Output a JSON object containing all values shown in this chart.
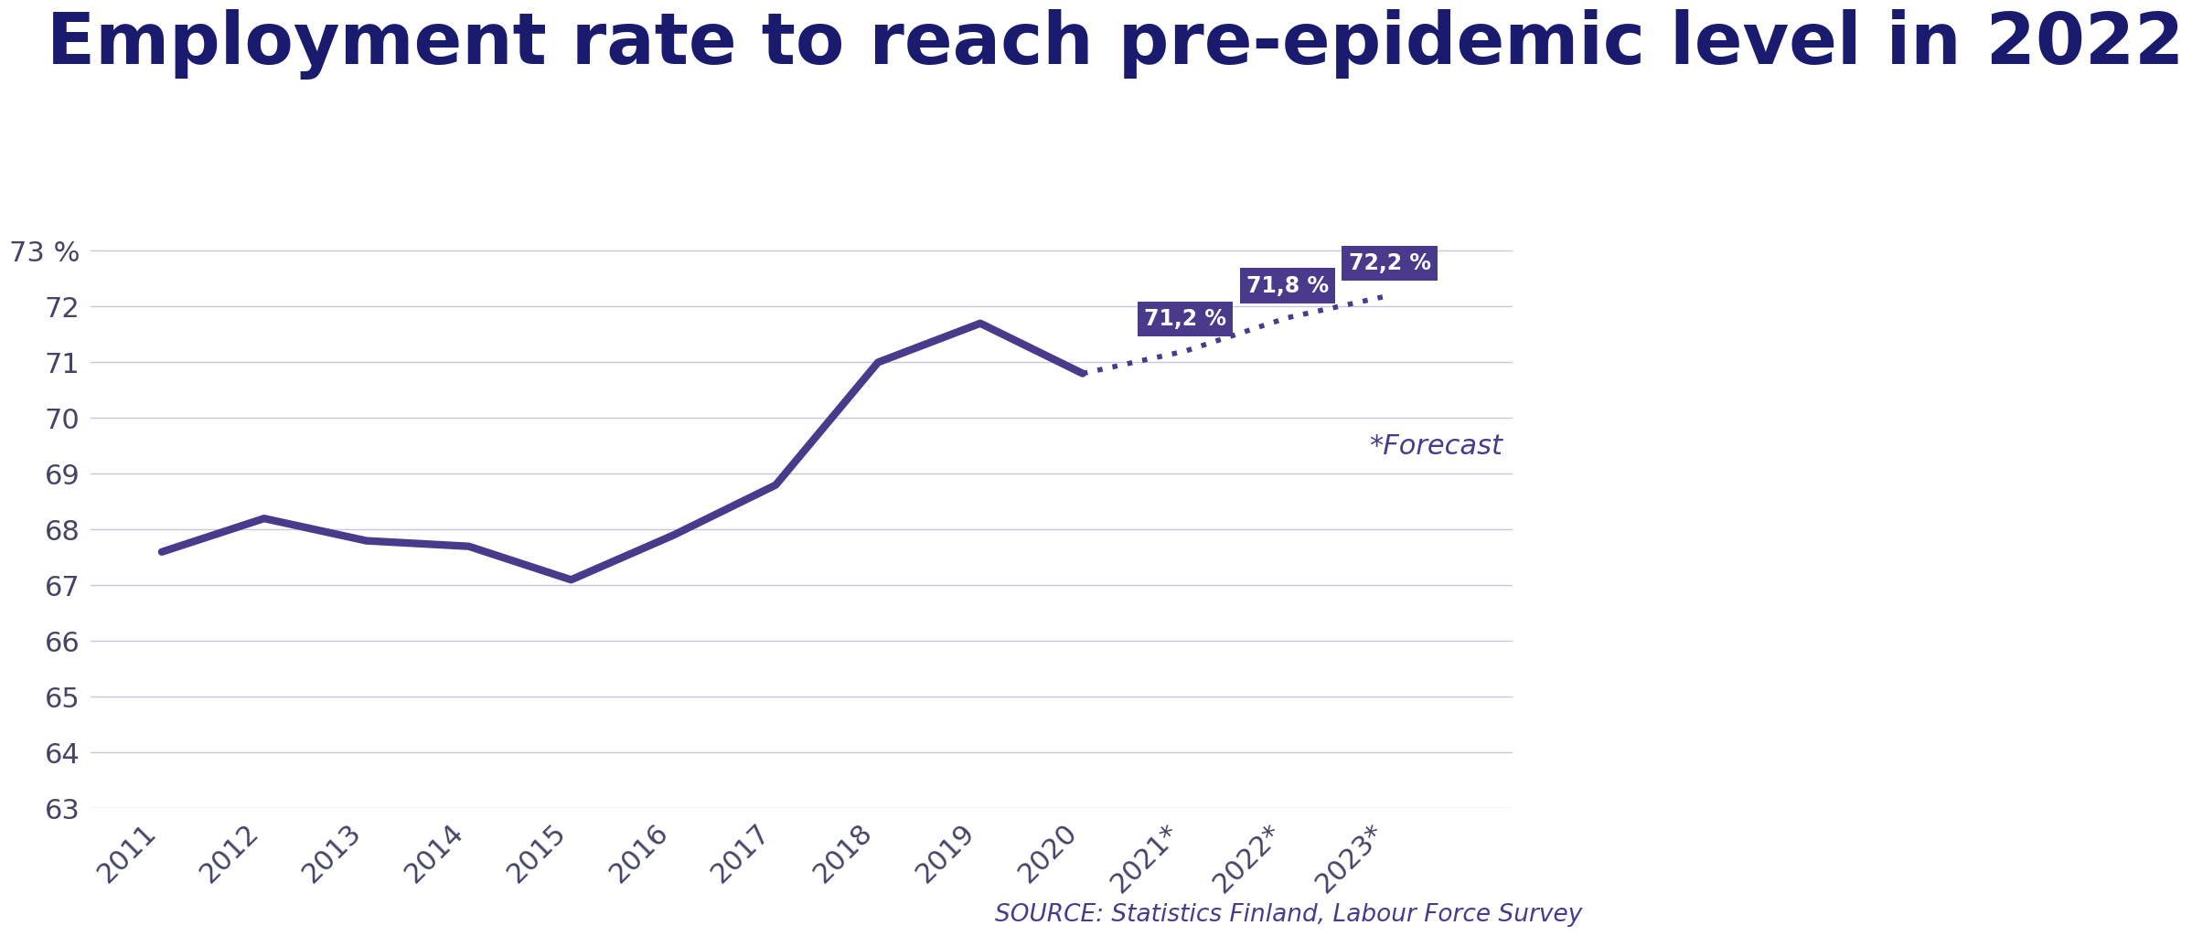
{
  "title": "Employment rate to reach pre-epidemic level in 2022",
  "title_color": "#1a1a6e",
  "background_color": "#ffffff",
  "line_color": "#4a3a8c",
  "grid_color": "#c8c8dc",
  "source_text": "SOURCE: Statistics Finland, Labour Force Survey",
  "forecast_text": "*Forecast",
  "years_solid": [
    2011,
    2012,
    2013,
    2014,
    2015,
    2016,
    2017,
    2018,
    2019,
    2020
  ],
  "values_solid": [
    67.6,
    68.2,
    67.8,
    67.7,
    67.1,
    67.9,
    68.8,
    71.0,
    71.7,
    70.8
  ],
  "years_dotted": [
    2020,
    2021,
    2022,
    2023
  ],
  "values_dotted": [
    70.8,
    71.2,
    71.8,
    72.2
  ],
  "x_labels": [
    "2011",
    "2012",
    "2013",
    "2014",
    "2015",
    "2016",
    "2017",
    "2018",
    "2019",
    "2020",
    "2021*",
    "2022*",
    "2023*"
  ],
  "x_positions": [
    2011,
    2012,
    2013,
    2014,
    2015,
    2016,
    2017,
    2018,
    2019,
    2020,
    2021,
    2022,
    2023
  ],
  "ylim": [
    63,
    73.8
  ],
  "yticks": [
    63,
    64,
    65,
    66,
    67,
    68,
    69,
    70,
    71,
    72,
    73
  ],
  "xlim": [
    2010.3,
    2024.2
  ],
  "annotation_points": [
    {
      "year": 2021,
      "value": 71.2,
      "label": "71,2 %"
    },
    {
      "year": 2022,
      "value": 71.8,
      "label": "71,8 %"
    },
    {
      "year": 2023,
      "value": 72.2,
      "label": "72,2 %"
    }
  ],
  "annotation_bg_color": "#4a3a8c",
  "annotation_text_color": "#ffffff"
}
